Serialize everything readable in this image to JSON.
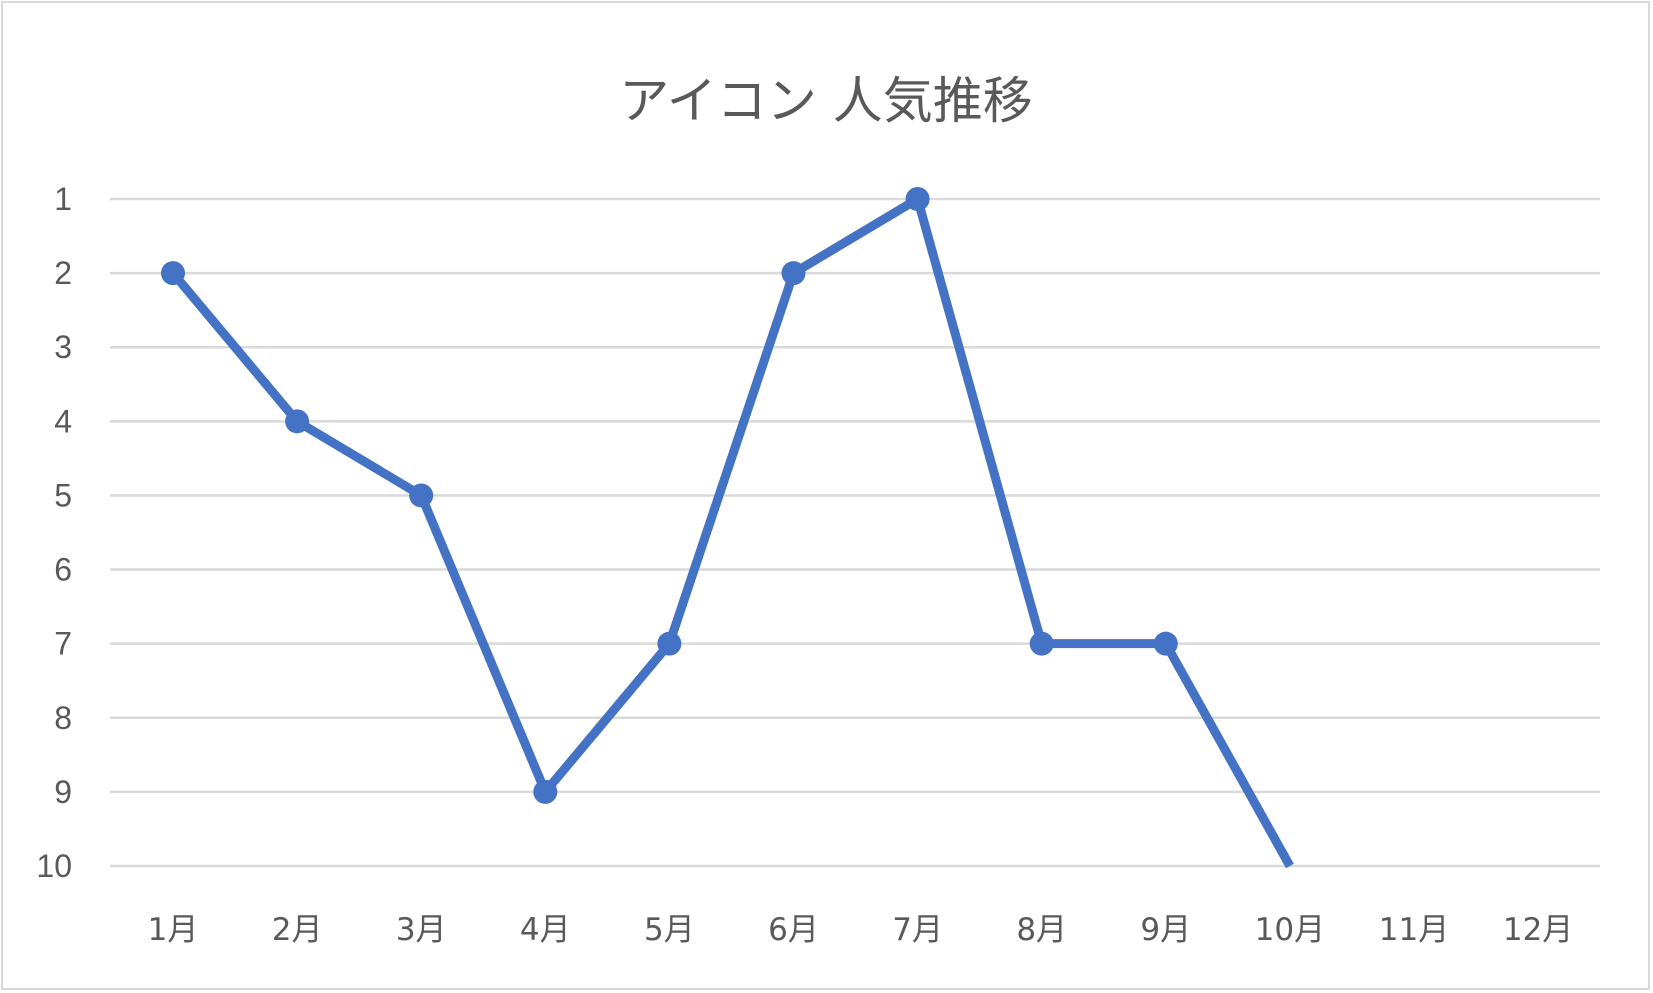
{
  "chart_data": {
    "type": "line",
    "title": "アイコン 人気推移",
    "categories": [
      "1月",
      "2月",
      "3月",
      "4月",
      "5月",
      "6月",
      "7月",
      "8月",
      "9月",
      "10月",
      "11月",
      "12月"
    ],
    "series": [
      {
        "values": [
          2,
          4,
          5,
          9,
          7,
          2,
          1,
          7,
          7,
          10,
          null,
          null
        ]
      }
    ],
    "yticks": [
      "1",
      "2",
      "3",
      "4",
      "5",
      "6",
      "7",
      "8",
      "9",
      "10"
    ],
    "ylim": [
      1,
      10
    ],
    "y_reversed": true,
    "xlabel": "",
    "ylabel": "",
    "grid": "horizontal",
    "legend": "none",
    "colors": {
      "line": "#4472c4",
      "grid": "#d9d9d9",
      "text": "#595959"
    }
  }
}
